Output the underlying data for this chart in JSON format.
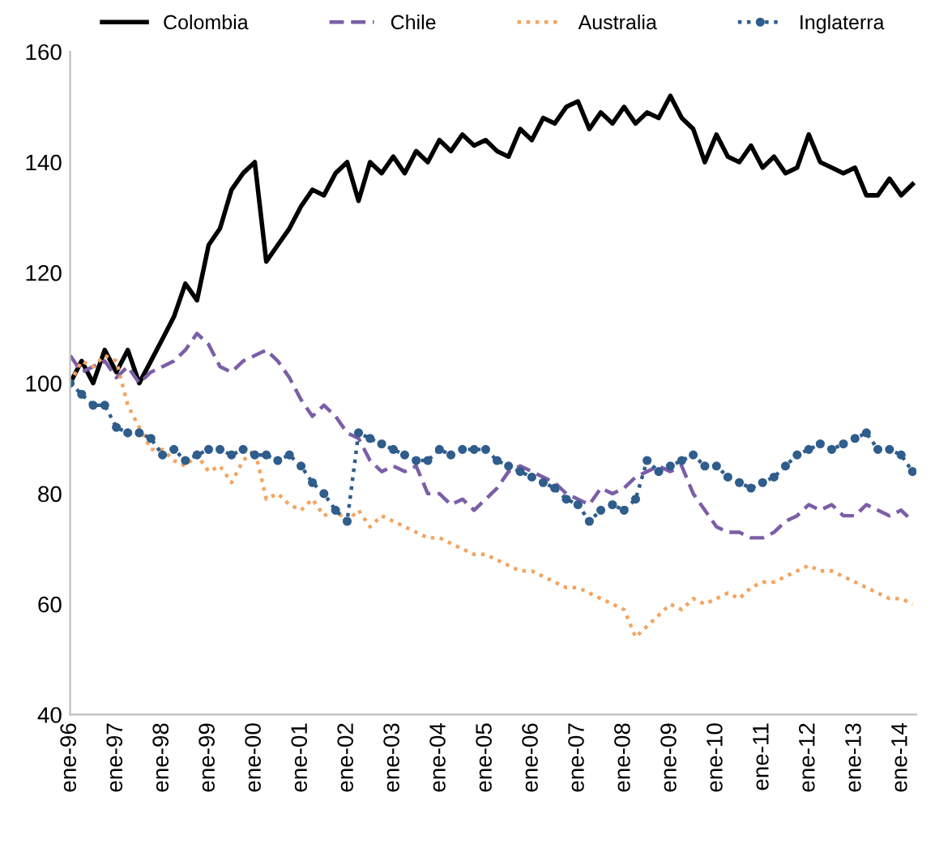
{
  "chart_data": {
    "type": "line",
    "x": [
      "1996-01",
      "1996-04",
      "1996-07",
      "1996-10",
      "1997-01",
      "1997-04",
      "1997-07",
      "1997-10",
      "1998-01",
      "1998-04",
      "1998-07",
      "1998-10",
      "1999-01",
      "1999-04",
      "1999-07",
      "1999-10",
      "2000-01",
      "2000-04",
      "2000-07",
      "2000-10",
      "2001-01",
      "2001-04",
      "2001-07",
      "2001-10",
      "2002-01",
      "2002-04",
      "2002-07",
      "2002-10",
      "2003-01",
      "2003-04",
      "2003-07",
      "2003-10",
      "2004-01",
      "2004-04",
      "2004-07",
      "2004-10",
      "2005-01",
      "2005-04",
      "2005-07",
      "2005-10",
      "2006-01",
      "2006-04",
      "2006-07",
      "2006-10",
      "2007-01",
      "2007-04",
      "2007-07",
      "2007-10",
      "2008-01",
      "2008-04",
      "2008-07",
      "2008-10",
      "2009-01",
      "2009-04",
      "2009-07",
      "2009-10",
      "2010-01",
      "2010-04",
      "2010-07",
      "2010-10",
      "2011-01",
      "2011-04",
      "2011-07",
      "2011-10",
      "2012-01",
      "2012-04",
      "2012-07",
      "2012-10",
      "2013-01",
      "2013-04",
      "2013-07",
      "2013-10",
      "2014-01",
      "2014-04"
    ],
    "series": [
      {
        "name": "Colombia",
        "color": "#000000",
        "line_style": "solid",
        "marker": "none",
        "values": [
          100,
          104,
          100,
          106,
          102,
          106,
          100,
          104,
          108,
          112,
          118,
          115,
          125,
          128,
          135,
          138,
          140,
          122,
          125,
          128,
          132,
          135,
          134,
          138,
          140,
          133,
          140,
          138,
          141,
          138,
          142,
          140,
          144,
          142,
          145,
          143,
          144,
          142,
          141,
          146,
          144,
          148,
          147,
          150,
          151,
          146,
          149,
          147,
          150,
          147,
          149,
          148,
          152,
          148,
          146,
          140,
          145,
          141,
          140,
          143,
          139,
          141,
          138,
          139,
          145,
          140,
          139,
          138,
          139,
          134,
          134,
          137,
          134,
          136
        ]
      },
      {
        "name": "Chile",
        "color": "#7b5ea7",
        "line_style": "dashed",
        "marker": "none",
        "values": [
          105,
          102,
          103,
          104,
          101,
          103,
          100,
          102,
          103,
          104,
          106,
          109,
          107,
          103,
          102,
          104,
          105,
          106,
          104,
          101,
          97,
          94,
          96,
          94,
          91,
          90,
          86,
          84,
          85,
          84,
          85,
          80,
          80,
          78,
          79,
          77,
          79,
          81,
          84,
          85,
          84,
          83,
          82,
          80,
          79,
          78,
          81,
          80,
          81,
          83,
          84,
          85,
          84,
          85,
          80,
          77,
          74,
          73,
          73,
          72,
          72,
          73,
          75,
          76,
          78,
          77,
          78,
          76,
          76,
          78,
          77,
          76,
          77,
          75
        ]
      },
      {
        "name": "Australia",
        "color": "#f4a460",
        "line_style": "dotted",
        "marker": "none",
        "values": [
          100,
          104,
          103,
          105,
          104,
          96,
          92,
          88,
          88,
          86,
          85,
          87,
          84,
          85,
          82,
          86,
          88,
          79,
          80,
          78,
          77,
          79,
          76,
          77,
          75,
          77,
          74,
          76,
          75,
          74,
          73,
          72,
          72,
          71,
          70,
          69,
          69,
          68,
          67,
          66,
          66,
          65,
          64,
          63,
          63,
          62,
          61,
          60,
          59,
          54,
          56,
          58,
          60,
          59,
          61,
          60,
          61,
          62,
          61,
          63,
          64,
          64,
          65,
          66,
          67,
          66,
          66,
          65,
          64,
          63,
          62,
          61,
          61,
          60
        ]
      },
      {
        "name": "Inglaterra",
        "color": "#2f5d8c",
        "line_style": "dotted",
        "marker": "circle",
        "values": [
          100,
          98,
          96,
          96,
          92,
          91,
          91,
          90,
          87,
          88,
          86,
          87,
          88,
          88,
          87,
          88,
          87,
          87,
          86,
          87,
          85,
          82,
          80,
          77,
          75,
          91,
          90,
          89,
          88,
          87,
          86,
          86,
          88,
          87,
          88,
          88,
          88,
          86,
          85,
          84,
          83,
          82,
          81,
          79,
          78,
          75,
          77,
          78,
          77,
          79,
          86,
          84,
          85,
          86,
          87,
          85,
          85,
          83,
          82,
          81,
          82,
          83,
          85,
          87,
          88,
          89,
          88,
          89,
          90,
          91,
          88,
          88,
          87,
          84
        ]
      }
    ],
    "xlim": [
      "1996-01",
      "2014-05"
    ],
    "xticks": [
      {
        "value": "1996-01",
        "label": "ene-96"
      },
      {
        "value": "1997-01",
        "label": "ene-97"
      },
      {
        "value": "1998-01",
        "label": "ene-98"
      },
      {
        "value": "1999-01",
        "label": "ene-99"
      },
      {
        "value": "2000-01",
        "label": "ene-00"
      },
      {
        "value": "2001-01",
        "label": "ene-01"
      },
      {
        "value": "2002-01",
        "label": "ene-02"
      },
      {
        "value": "2003-01",
        "label": "ene-03"
      },
      {
        "value": "2004-01",
        "label": "ene-04"
      },
      {
        "value": "2005-01",
        "label": "ene-05"
      },
      {
        "value": "2006-01",
        "label": "ene-06"
      },
      {
        "value": "2007-01",
        "label": "ene-07"
      },
      {
        "value": "2008-01",
        "label": "ene-08"
      },
      {
        "value": "2009-01",
        "label": "ene-09"
      },
      {
        "value": "2010-01",
        "label": "ene-10"
      },
      {
        "value": "2011-01",
        "label": "ene-11"
      },
      {
        "value": "2012-01",
        "label": "ene-12"
      },
      {
        "value": "2013-01",
        "label": "ene-13"
      },
      {
        "value": "2014-01",
        "label": "ene-14"
      }
    ],
    "ylim": [
      40,
      160
    ],
    "yticks": [
      40,
      60,
      80,
      100,
      120,
      140,
      160
    ],
    "grid": false,
    "legend": "top"
  }
}
